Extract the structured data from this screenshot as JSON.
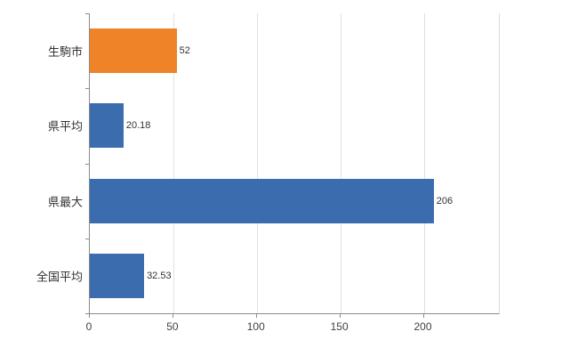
{
  "chart_data": {
    "type": "bar",
    "orientation": "horizontal",
    "title": "",
    "xlabel": "",
    "ylabel": "",
    "categories": [
      "生駒市",
      "県平均",
      "県最大",
      "全国平均"
    ],
    "values": [
      52,
      20.18,
      206,
      32.53
    ],
    "value_labels": [
      "52",
      "20.18",
      "206",
      "32.53"
    ],
    "bar_colors": [
      "#ee8327",
      "#3a6cae",
      "#3a6cae",
      "#3a6cae"
    ],
    "xlim": [
      0,
      245
    ],
    "xticks": [
      0,
      50,
      100,
      150,
      200
    ],
    "grid": "vertical-only",
    "legend": "none",
    "background": "#ffffff",
    "axis_color": "#8c8c8c",
    "gridline_color": "#e0e0e0",
    "label_color": "#333333"
  }
}
